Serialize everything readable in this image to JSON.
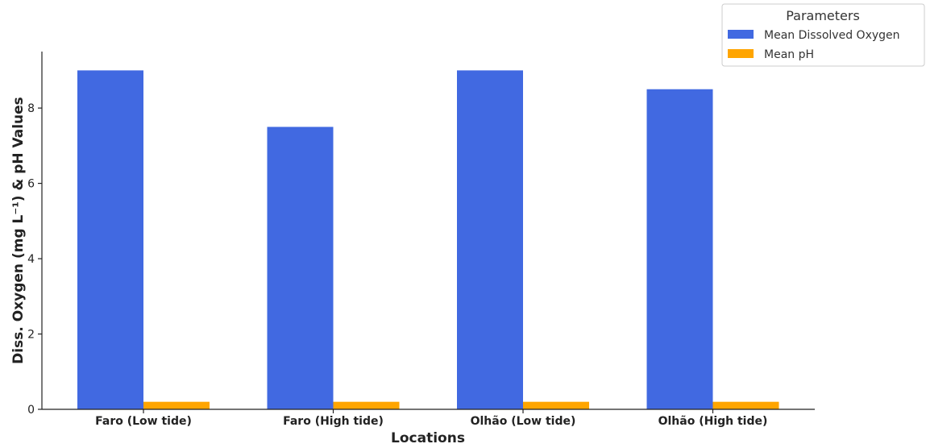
{
  "chart_data": {
    "type": "bar",
    "categories": [
      "Faro (Low tide)",
      "Faro (High tide)",
      "Olhão (Low tide)",
      "Olhão (High tide)"
    ],
    "series": [
      {
        "name": "Mean Dissolved Oxygen",
        "values": [
          9.0,
          7.5,
          9.0,
          8.5
        ],
        "color": "#4169e1"
      },
      {
        "name": "Mean pH",
        "values": [
          0.2,
          0.2,
          0.2,
          0.2
        ],
        "color": "#ffa500"
      }
    ],
    "xlabel": "Locations",
    "ylabel": "Diss. Oxygen (mg L⁻¹) & pH Values",
    "ylim": [
      0,
      9.5
    ],
    "yticks": [
      0,
      2,
      4,
      6,
      8
    ],
    "grid": false,
    "legend": {
      "title": "Parameters",
      "placement": "top-right, outside"
    }
  }
}
